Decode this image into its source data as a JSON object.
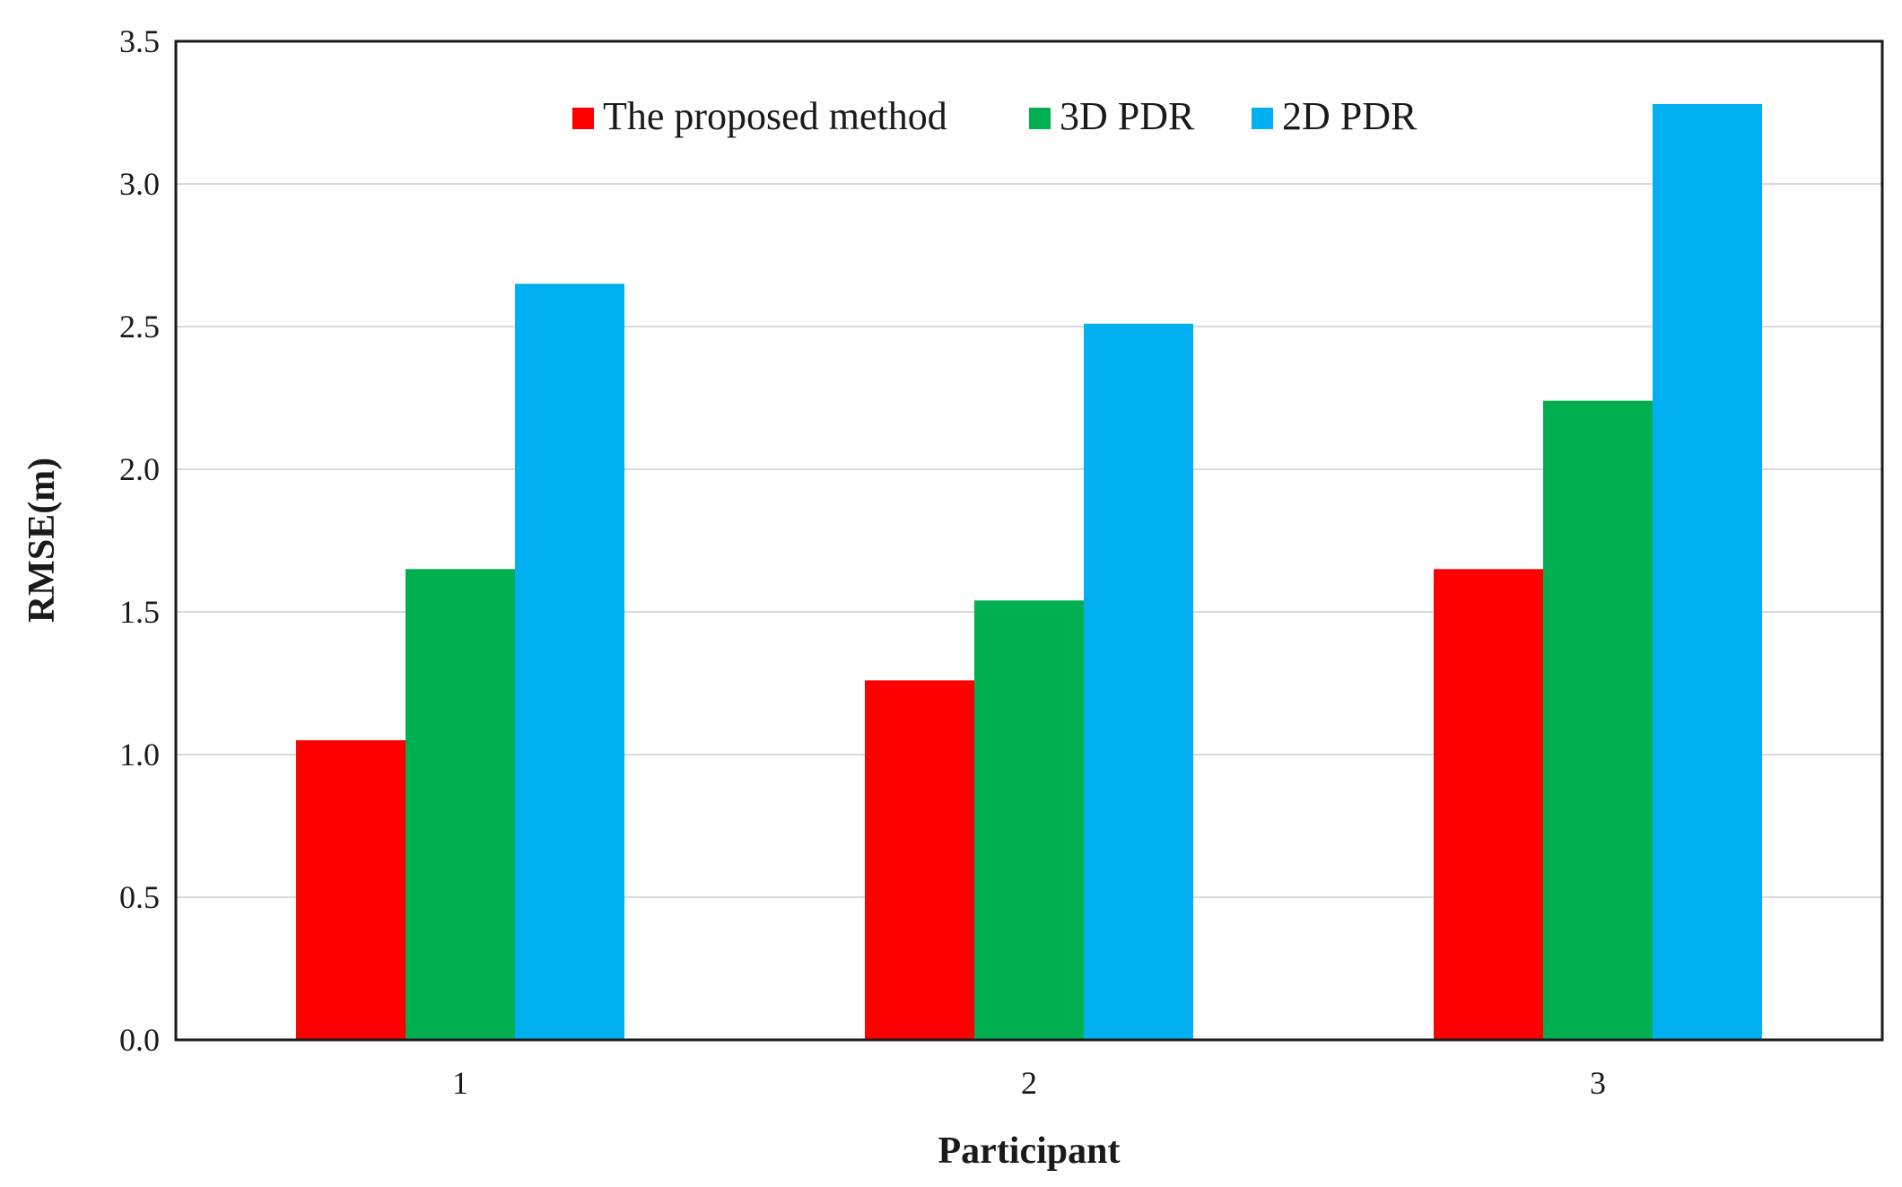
{
  "chart_data": {
    "type": "bar",
    "title": "",
    "xlabel": "Participant",
    "ylabel": "RMSE(m)",
    "categories": [
      "1",
      "2",
      "3"
    ],
    "ylim": [
      0,
      3.5
    ],
    "yticks": [
      "0.0",
      "0.5",
      "1.0",
      "1.5",
      "2.0",
      "2.5",
      "3.0",
      "3.5"
    ],
    "grid": "horizontal",
    "legend_position": "top-center",
    "series": [
      {
        "name": "The proposed method",
        "color": "#ff0000",
        "values": [
          1.05,
          1.26,
          1.65
        ]
      },
      {
        "name": "3D PDR",
        "color": "#00b050",
        "values": [
          1.65,
          1.54,
          2.24
        ]
      },
      {
        "name": "2D PDR",
        "color": "#00b0f0",
        "values": [
          2.65,
          2.51,
          3.28
        ]
      }
    ]
  }
}
